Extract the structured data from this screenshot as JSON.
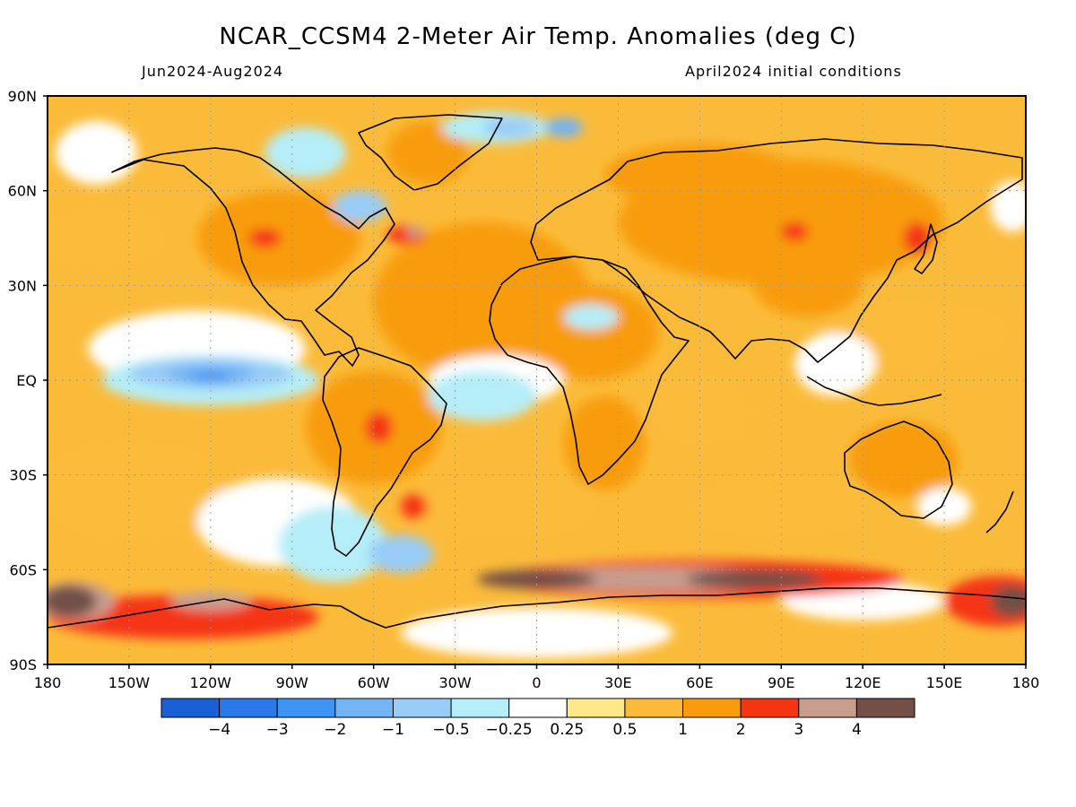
{
  "title": "NCAR_CCSM4 2-Meter Air Temp. Anomalies (deg C)",
  "subtitle_left": "Jun2024-Aug2024",
  "subtitle_right": "April2024 initial conditions",
  "map": {
    "lat_range": [
      -90,
      90
    ],
    "lon_range": [
      -180,
      180
    ],
    "lat_ticks": [
      {
        "value": 90,
        "label": "90N"
      },
      {
        "value": 60,
        "label": "60N"
      },
      {
        "value": 30,
        "label": "30N"
      },
      {
        "value": 0,
        "label": "EQ"
      },
      {
        "value": -30,
        "label": "30S"
      },
      {
        "value": -60,
        "label": "60S"
      },
      {
        "value": -90,
        "label": "90S"
      }
    ],
    "lon_ticks": [
      {
        "value": -180,
        "label": "180"
      },
      {
        "value": -150,
        "label": "150W"
      },
      {
        "value": -120,
        "label": "120W"
      },
      {
        "value": -90,
        "label": "90W"
      },
      {
        "value": -60,
        "label": "60W"
      },
      {
        "value": -30,
        "label": "30W"
      },
      {
        "value": 0,
        "label": "0"
      },
      {
        "value": 30,
        "label": "30E"
      },
      {
        "value": 60,
        "label": "60E"
      },
      {
        "value": 90,
        "label": "90E"
      },
      {
        "value": 120,
        "label": "120E"
      },
      {
        "value": 150,
        "label": "150E"
      },
      {
        "value": 180,
        "label": "180"
      }
    ],
    "grid": true
  },
  "colorbar": {
    "colors": [
      "#1a5fd6",
      "#2b78ea",
      "#3f94f3",
      "#73b4f5",
      "#99ccf7",
      "#b5eef8",
      "#ffffff",
      "#fde88a",
      "#fbbb3a",
      "#f89c0e",
      "#f53512",
      "#c79d8e",
      "#725047"
    ],
    "labels": [
      "−4",
      "−3",
      "−2",
      "−1",
      "−0.5",
      "−0.25",
      "0.25",
      "0.5",
      "1",
      "2",
      "3",
      "4"
    ]
  },
  "regions": [
    {
      "color_index": 9,
      "lon": -20,
      "lat": 25,
      "rx": 40,
      "ry": 25
    },
    {
      "color_index": 9,
      "lon": 20,
      "lat": 15,
      "rx": 25,
      "ry": 15
    },
    {
      "color_index": 9,
      "lon": 25,
      "lat": -20,
      "rx": 15,
      "ry": 15
    },
    {
      "color_index": 9,
      "lon": 90,
      "lat": 50,
      "rx": 60,
      "ry": 20
    },
    {
      "color_index": 9,
      "lon": 60,
      "lat": 65,
      "rx": 35,
      "ry": 10
    },
    {
      "color_index": 9,
      "lon": 100,
      "lat": 30,
      "rx": 20,
      "ry": 10
    },
    {
      "color_index": 9,
      "lon": -95,
      "lat": 45,
      "rx": 30,
      "ry": 15
    },
    {
      "color_index": 9,
      "lon": -60,
      "lat": -15,
      "rx": 25,
      "ry": 18
    },
    {
      "color_index": 9,
      "lon": -40,
      "lat": 72,
      "rx": 15,
      "ry": 10
    },
    {
      "color_index": 9,
      "lon": 135,
      "lat": -25,
      "rx": 20,
      "ry": 12
    },
    {
      "color_index": 8,
      "lon": -160,
      "lat": 45,
      "rx": 25,
      "ry": 12
    },
    {
      "color_index": 8,
      "lon": -150,
      "lat": -35,
      "rx": 35,
      "ry": 18
    },
    {
      "color_index": 8,
      "lon": 140,
      "lat": 15,
      "rx": 35,
      "ry": 12
    },
    {
      "color_index": 8,
      "lon": 90,
      "lat": -40,
      "rx": 35,
      "ry": 12
    },
    {
      "color_index": 8,
      "lon": -10,
      "lat": -40,
      "rx": 35,
      "ry": 12
    },
    {
      "color_index": 8,
      "lon": 60,
      "lat": -10,
      "rx": 20,
      "ry": 12
    },
    {
      "color_index": 6,
      "lon": -125,
      "lat": 10,
      "rx": 40,
      "ry": 12
    },
    {
      "color_index": 6,
      "lon": -95,
      "lat": -45,
      "rx": 30,
      "ry": 14
    },
    {
      "color_index": 6,
      "lon": -15,
      "lat": 0,
      "rx": 25,
      "ry": 8
    },
    {
      "color_index": 6,
      "lon": 0,
      "lat": -80,
      "rx": 50,
      "ry": 8
    },
    {
      "color_index": 6,
      "lon": 120,
      "lat": -70,
      "rx": 30,
      "ry": 6
    },
    {
      "color_index": 6,
      "lon": -162,
      "lat": 72,
      "rx": 15,
      "ry": 10
    },
    {
      "color_index": 6,
      "lon": 110,
      "lat": 5,
      "rx": 15,
      "ry": 10
    },
    {
      "color_index": 6,
      "lon": 150,
      "lat": -40,
      "rx": 10,
      "ry": 6
    },
    {
      "color_index": 6,
      "lon": 175,
      "lat": 55,
      "rx": 8,
      "ry": 8
    },
    {
      "color_index": 5,
      "lon": -120,
      "lat": 0,
      "rx": 40,
      "ry": 8
    },
    {
      "color_index": 5,
      "lon": -75,
      "lat": -52,
      "rx": 20,
      "ry": 12
    },
    {
      "color_index": 5,
      "lon": -20,
      "lat": -5,
      "rx": 20,
      "ry": 8
    },
    {
      "color_index": 5,
      "lon": -85,
      "lat": 72,
      "rx": 15,
      "ry": 8
    },
    {
      "color_index": 5,
      "lon": -15,
      "lat": 80,
      "rx": 20,
      "ry": 5
    },
    {
      "color_index": 5,
      "lon": 20,
      "lat": 20,
      "rx": 10,
      "ry": 4
    },
    {
      "color_index": 4,
      "lon": -120,
      "lat": 2,
      "rx": 30,
      "ry": 5
    },
    {
      "color_index": 4,
      "lon": -50,
      "lat": -55,
      "rx": 12,
      "ry": 6
    },
    {
      "color_index": 4,
      "lon": -65,
      "lat": 55,
      "rx": 10,
      "ry": 5
    },
    {
      "color_index": 4,
      "lon": -10,
      "lat": 80,
      "rx": 10,
      "ry": 3
    },
    {
      "color_index": 3,
      "lon": -120,
      "lat": 2,
      "rx": 16,
      "ry": 3
    },
    {
      "color_index": 3,
      "lon": 10,
      "lat": 80,
      "rx": 7,
      "ry": 3
    },
    {
      "color_index": 2,
      "lon": -120,
      "lat": 1,
      "rx": 8,
      "ry": 1.5
    },
    {
      "color_index": 10,
      "lon": 60,
      "lat": -63,
      "rx": 75,
      "ry": 6
    },
    {
      "color_index": 10,
      "lon": -130,
      "lat": -75,
      "rx": 50,
      "ry": 7
    },
    {
      "color_index": 10,
      "lon": 170,
      "lat": -70,
      "rx": 20,
      "ry": 8
    },
    {
      "color_index": 10,
      "lon": -58,
      "lat": -15,
      "rx": 5,
      "ry": 5
    },
    {
      "color_index": 10,
      "lon": -45,
      "lat": -40,
      "rx": 5,
      "ry": 4
    },
    {
      "color_index": 10,
      "lon": -100,
      "lat": 45,
      "rx": 6,
      "ry": 3
    },
    {
      "color_index": 10,
      "lon": -48,
      "lat": 46,
      "rx": 7,
      "ry": 3
    },
    {
      "color_index": 10,
      "lon": 95,
      "lat": 47,
      "rx": 5,
      "ry": 3
    },
    {
      "color_index": 10,
      "lon": 140,
      "lat": 45,
      "rx": 5,
      "ry": 5
    },
    {
      "color_index": 11,
      "lon": 40,
      "lat": -63,
      "rx": 60,
      "ry": 4
    },
    {
      "color_index": 11,
      "lon": -170,
      "lat": -70,
      "rx": 15,
      "ry": 6
    },
    {
      "color_index": 11,
      "lon": -120,
      "lat": -70,
      "rx": 15,
      "ry": 3
    },
    {
      "color_index": 11,
      "lon": -45,
      "lat": 47,
      "rx": 3,
      "ry": 2
    },
    {
      "color_index": 12,
      "lon": 0,
      "lat": -63,
      "rx": 22,
      "ry": 3
    },
    {
      "color_index": 12,
      "lon": 80,
      "lat": -63,
      "rx": 25,
      "ry": 3
    },
    {
      "color_index": 12,
      "lon": -172,
      "lat": -70,
      "rx": 10,
      "ry": 5
    },
    {
      "color_index": 12,
      "lon": 175,
      "lat": -70,
      "rx": 8,
      "ry": 5
    }
  ]
}
